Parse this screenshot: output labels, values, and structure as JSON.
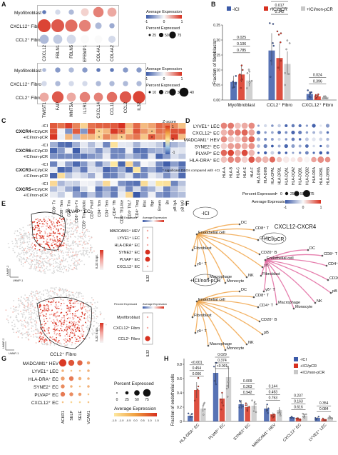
{
  "panel_letters": [
    "A",
    "B",
    "C",
    "D",
    "E",
    "F",
    "G",
    "H"
  ],
  "colors": {
    "red": "#d7301f",
    "blue": "#3b5aa8",
    "orange": "#f0a040",
    "grey": "#c8c8c8",
    "pink": "#e0609a"
  },
  "panelA": {
    "top": {
      "rows": [
        "Myofibroblast",
        "CXCL12⁺ Fibro",
        "CCL2⁺ Fibro"
      ],
      "cols": [
        "CXCL12",
        "FBLN1",
        "FBLN5",
        "EFEMP1",
        "COL4A1",
        "COL4A2"
      ],
      "values": [
        [
          0.1,
          0.4,
          0.3,
          0.6,
          0.8,
          0.7
        ],
        [
          0.95,
          0.9,
          0.85,
          0.8,
          0.3,
          0.25
        ],
        [
          0.3,
          0.35,
          0.4,
          0.5,
          0.5,
          0.4
        ]
      ],
      "sizes": [
        [
          0.2,
          0.3,
          0.3,
          0.5,
          0.7,
          0.6
        ],
        [
          0.9,
          0.9,
          0.85,
          0.8,
          0.4,
          0.3
        ],
        [
          0.6,
          0.6,
          0.6,
          0.55,
          0.5,
          0.45
        ]
      ]
    },
    "bottom": {
      "rows": [
        "Myofibroblast",
        "CXCL12⁺ Fibro",
        "CCL2⁺ Fibro"
      ],
      "cols": [
        "TWIST1",
        "FAP",
        "WNT5A",
        "IL1R1",
        "CXCL14",
        "CCL11",
        "CCL2",
        "IL32"
      ],
      "values": [
        [
          0.3,
          0.2,
          0.3,
          0.2,
          0.1,
          0.1,
          0.2,
          0.2
        ],
        [
          0.4,
          0.3,
          0.4,
          0.4,
          0.3,
          0.3,
          0.3,
          0.3
        ],
        [
          0.7,
          0.9,
          0.7,
          0.8,
          0.8,
          0.85,
          0.9,
          0.95
        ]
      ],
      "sizes": [
        [
          0.2,
          0.3,
          0.3,
          0.3,
          0.2,
          0.2,
          0.3,
          0.3
        ],
        [
          0.3,
          0.3,
          0.3,
          0.3,
          0.3,
          0.3,
          0.3,
          0.3
        ],
        [
          0.6,
          0.8,
          0.6,
          0.7,
          0.6,
          0.7,
          0.8,
          0.85
        ]
      ]
    },
    "legend_top": {
      "title1": "Average Expression",
      "ticks1": [
        "-1",
        "0",
        "1"
      ],
      "title2": "Percent Expressed",
      "ticks2": [
        "25",
        "50",
        "75"
      ]
    },
    "legend_bottom": {
      "title1": "Average Expression",
      "ticks1": [
        "-1",
        "0",
        "1"
      ],
      "title2": "Percent Expressed",
      "ticks2": [
        "10",
        "20",
        "30",
        "40"
      ]
    }
  },
  "panelB": {
    "legend": [
      "-ICI",
      "+ICI/pCR",
      "+ICI/non-pCR"
    ],
    "ylabel": "Fraction of fibroblasts",
    "yticks": [
      "0.00",
      "0.05",
      "0.10",
      "0.15",
      "0.20",
      "0.25"
    ],
    "categories": [
      "Myofibroblast",
      "CCL2⁺ Fibro",
      "CXCL12⁺ Fibro"
    ],
    "pvalues": [
      [
        "0.785",
        "0.106",
        "0.025"
      ],
      [
        "0.142",
        "0.017",
        "0.336"
      ],
      [
        "0.396",
        "0.024",
        ""
      ]
    ],
    "means": [
      [
        0.06,
        0.085,
        0.065
      ],
      [
        0.165,
        0.14,
        0.12
      ],
      [
        0.02,
        0.012,
        0.01
      ]
    ]
  },
  "chart_data": {
    "type": "bar",
    "categories": [
      "Myofibroblast",
      "CCL2⁺ Fibro",
      "CXCL12⁺ Fibro"
    ],
    "series": [
      {
        "name": "-ICI",
        "values": [
          0.06,
          0.165,
          0.02
        ]
      },
      {
        "name": "+ICI/pCR",
        "values": [
          0.085,
          0.14,
          0.012
        ]
      },
      {
        "name": "+ICI/non-pCR",
        "values": [
          0.065,
          0.12,
          0.01
        ]
      }
    ],
    "ylabel": "Fraction of fibroblasts",
    "ylim": [
      0,
      0.25
    ]
  },
  "panelC": {
    "rows": [
      [
        "CXCR4",
        "-ICI"
      ],
      [
        "",
        "+ICI/pCR"
      ],
      [
        "",
        "+ICI/non-pCR"
      ],
      [
        "CXCR6",
        "-ICI"
      ],
      [
        "",
        "+ICI/pCR"
      ],
      [
        "",
        "+ICI/non-pCR"
      ],
      [
        "CXCR3",
        "-ICI"
      ],
      [
        "",
        "+ICI/pCR"
      ],
      [
        "",
        "+ICI/non-pCR"
      ],
      [
        "CXCR5",
        "-ICI"
      ],
      [
        "",
        "+ICI/pCR"
      ],
      [
        "",
        "+ICI/non-pCR"
      ]
    ],
    "cols": [
      "CD8⁺ Tn",
      "CD8⁺ Tem",
      "CD8⁺ Trm",
      "CD8⁺ Tem-Tn",
      "CD8⁺ Trm-mitotic",
      "CD4⁺ Prolif",
      "CD4⁺ Tcm",
      "CD4⁺ Tem",
      "CD4⁺ Tfh",
      "CD4⁺ Th1-like",
      "CD4⁺ Th17",
      "CD4⁺ Treg",
      "Bfoc",
      "Bgc",
      "Bmem",
      "Bn",
      "pB IgA",
      "pB IgG"
    ],
    "legend_title": "Z-score",
    "legend_ticks": [
      "1",
      "0",
      "-1"
    ],
    "note": "* significant DEGs compared with -ICI"
  },
  "panelD": {
    "rows": [
      "LYVE1⁺ LEC",
      "CXCL12⁺ EC",
      "MADCAM1⁺ HEV",
      "SYNE2⁺ EC",
      "PLVAP⁺ EC",
      "HLA-DRA⁺ EC"
    ],
    "cols": [
      "HLA-A",
      "HLA-B",
      "HLA-C",
      "HLA-E",
      "HLA-F",
      "HLA-DMA",
      "HLA-DMB",
      "HLA-DPA1",
      "HLA-DPB1",
      "HLA-DQA1",
      "HLA-DQA2",
      "HLA-DQB1",
      "HLA-DQB2",
      "HLA-DRA",
      "HLA-DRB1",
      "HLA-DRB5"
    ],
    "legend_pct": "Percent Expressed",
    "legend_pct_ticks": [
      "0",
      "25",
      "50",
      "75"
    ],
    "legend_avg": "Average Expression",
    "legend_avg_ticks": [
      "-1",
      "0",
      "1"
    ]
  },
  "panelE": {
    "label_top": "PLVAP⁺ EC",
    "label_bottom": "CCL2⁺ Fibro",
    "umap_x": "UMAP-1",
    "umap_y": "UMAP-2",
    "scale_label": "IL32 Expr.",
    "top_dot_rows": [
      "MADCAM1⁺ HEV",
      "LYVE1⁺ LEC",
      "HLA-DRA⁺ EC",
      "SYNE2⁺ EC",
      "PLVAP⁺ EC",
      "CXCL12⁺ EC"
    ],
    "bottom_dot_rows": [
      "Myofibroblast",
      "CXCL12⁺ Fibro",
      "CCL2⁺ Fibro"
    ],
    "dot_col": "IL32",
    "dot_legend1": "Percent Expressed",
    "dot_legend2": "Average Expression"
  },
  "panelF": {
    "title": "CXCL12-CXCR4",
    "groups": [
      "-ICI",
      "+ICI/pCR",
      "+ICI/non-pCR"
    ],
    "nodes": [
      "DC",
      "CD8⁺ T",
      "Endothelial cell",
      "CD4⁺ T",
      "Fibroblast",
      "CD20⁺ B",
      "γδ⁺ T",
      "pB",
      "Macrophage",
      "NK",
      "Monocyte"
    ]
  },
  "panelG": {
    "rows": [
      "MADCAM1⁺ HEV",
      "LYVE1⁺ LEC",
      "HLA-DRA⁺ EC",
      "SYNE2⁺ EC",
      "PLVAP⁺ EC",
      "CXCL12⁺ EC"
    ],
    "cols": [
      "ACKR1",
      "SELP",
      "SELE",
      "VCAM1"
    ],
    "legend_pct": "Percent Expressed",
    "legend_pct_ticks": [
      "0",
      "25",
      "50",
      "75"
    ],
    "legend_avg": "Average Expression",
    "legend_avg_ticks": [
      "-1.5",
      "-1.0",
      "-0.5",
      "0.0",
      "0.5",
      "1.0",
      "1.5"
    ]
  },
  "panelH": {
    "legend": [
      "-ICI",
      "+ICI/pCR",
      "+ICI/non-pCR"
    ],
    "ylabel": "Fraction of endothelial cells",
    "yticks": [
      "0",
      "0.2",
      "0.4",
      "0.6",
      "0.8"
    ],
    "categories": [
      "HLA-DRA⁺ EC",
      "PLVAP⁺ EC",
      "SYNE2⁺ EC",
      "MADCAM1⁺ HEV",
      "CXCL12⁺ EC",
      "LYVE1⁺ LEC"
    ],
    "pvalues": [
      [
        "0.006",
        "0.454",
        "<0.001"
      ],
      [
        "<0.001",
        "0.374",
        "0.029"
      ],
      [
        "0.942",
        "0.263",
        "0.009"
      ],
      [
        "0.753",
        "0.493",
        "0.144"
      ],
      [
        "0.616",
        "0.163",
        "0.237"
      ],
      [
        "0.084",
        "0.354",
        ""
      ]
    ],
    "means": [
      [
        0.08,
        0.44,
        0.18
      ],
      [
        0.68,
        0.32,
        0.62
      ],
      [
        0.24,
        0.2,
        0.22
      ],
      [
        0.18,
        0.1,
        0.16
      ],
      [
        0.06,
        0.04,
        0.08
      ],
      [
        0.05,
        0.03,
        0.06
      ]
    ]
  }
}
